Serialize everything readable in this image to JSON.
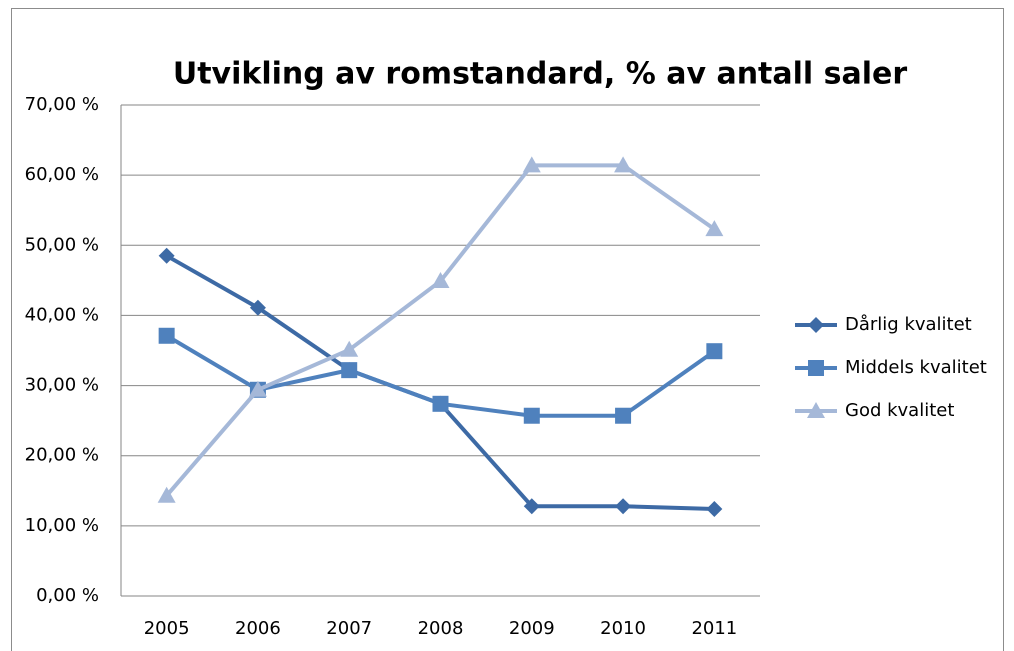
{
  "chart_data": {
    "type": "line",
    "title": "Utvikling av romstandard, % av antall saler",
    "categories": [
      "2005",
      "2006",
      "2007",
      "2008",
      "2009",
      "2010",
      "2011"
    ],
    "series": [
      {
        "name": "Dårlig kvalitet",
        "color": "#3d6aa5",
        "marker": "diamond",
        "values": [
          48.5,
          41.1,
          32.2,
          27.4,
          12.8,
          12.8,
          12.4
        ]
      },
      {
        "name": "Middels kvalitet",
        "color": "#4f81bd",
        "marker": "square",
        "values": [
          37.1,
          29.4,
          32.2,
          27.4,
          25.7,
          25.7,
          34.9
        ]
      },
      {
        "name": "God kvalitet",
        "color": "#a5b8d8",
        "marker": "triangle",
        "values": [
          14.3,
          29.4,
          35.1,
          44.9,
          61.4,
          61.4,
          52.3
        ]
      }
    ],
    "ylim": [
      0,
      70
    ],
    "yticks": [
      {
        "value": 0,
        "label": "0,00 %"
      },
      {
        "value": 10,
        "label": "10,00 %"
      },
      {
        "value": 20,
        "label": "20,00 %"
      },
      {
        "value": 30,
        "label": "30,00 %"
      },
      {
        "value": 40,
        "label": "40,00 %"
      },
      {
        "value": 50,
        "label": "50,00 %"
      },
      {
        "value": 60,
        "label": "60,00 %"
      },
      {
        "value": 70,
        "label": "70,00 %"
      }
    ],
    "grid": true,
    "legend": "right"
  }
}
